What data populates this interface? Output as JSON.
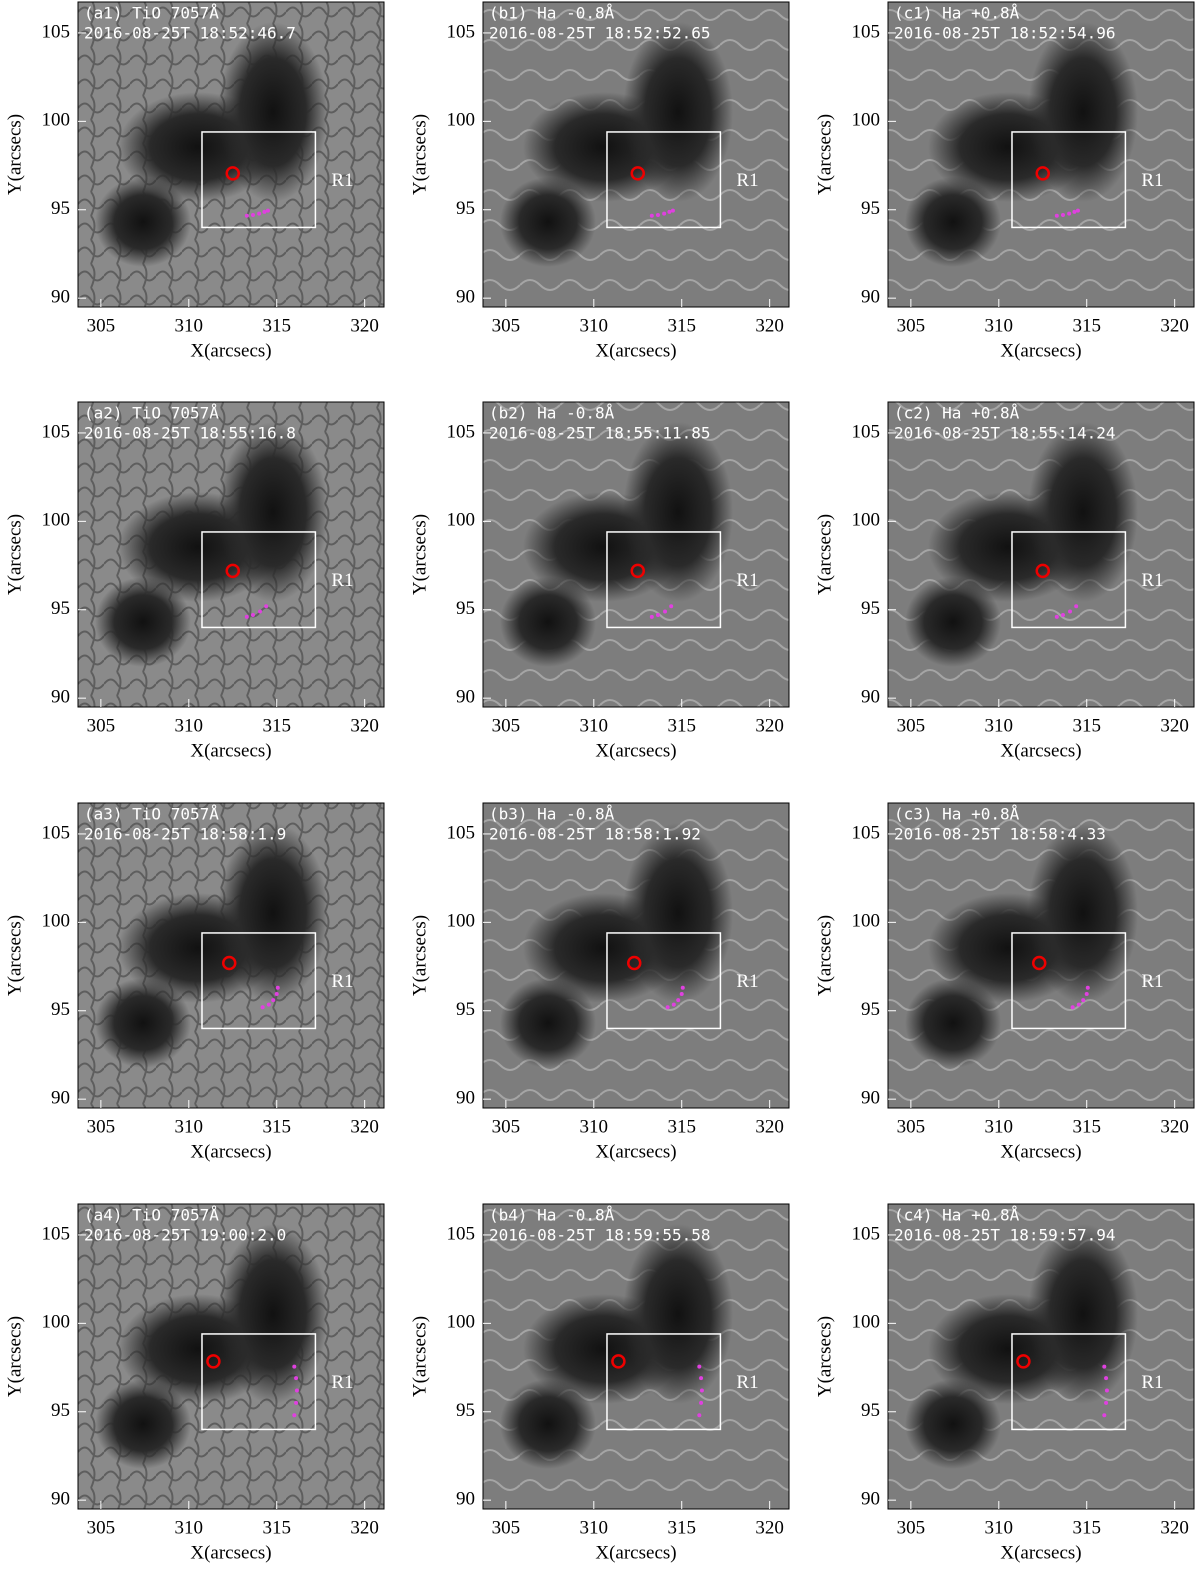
{
  "chart_data": [
    {
      "type": "image",
      "title": "(a1) TiO 7057Å",
      "subtitle": "2016-08-25T 18:52:46.7",
      "xlabel": "X(arcsecs)",
      "ylabel": "Y(arcsecs)",
      "xlim": [
        303.7,
        321.1
      ],
      "ylim": [
        89.5,
        106.75
      ],
      "xticks": [
        305,
        310,
        315,
        320
      ],
      "yticks": [
        90,
        95,
        100,
        105
      ],
      "box": {
        "label": "R1",
        "x": [
          310.75,
          317.2
        ],
        "y": [
          94,
          99.4
        ]
      },
      "circle": [
        312.5,
        97.06
      ],
      "points": {
        "x": [
          313.3,
          313.65,
          314.0,
          314.3,
          314.5
        ],
        "y": [
          94.66,
          94.7,
          94.78,
          94.88,
          94.95
        ]
      }
    },
    {
      "type": "image",
      "title": "(b1) Ha -0.8Å",
      "subtitle": "2016-08-25T 18:52:52.65",
      "xlabel": "X(arcsecs)",
      "ylabel": "Y(arcsecs)",
      "xlim": [
        303.7,
        321.1
      ],
      "ylim": [
        89.5,
        106.75
      ],
      "xticks": [
        305,
        310,
        315,
        320
      ],
      "yticks": [
        90,
        95,
        100,
        105
      ],
      "box": {
        "label": "R1",
        "x": [
          310.75,
          317.2
        ],
        "y": [
          94,
          99.4
        ]
      },
      "circle": [
        312.5,
        97.06
      ],
      "points": {
        "x": [
          313.3,
          313.65,
          314.0,
          314.3,
          314.5
        ],
        "y": [
          94.66,
          94.7,
          94.78,
          94.88,
          94.95
        ]
      }
    },
    {
      "type": "image",
      "title": "(c1) Ha +0.8Å",
      "subtitle": "2016-08-25T 18:52:54.96",
      "xlabel": "X(arcsecs)",
      "ylabel": "Y(arcsecs)",
      "xlim": [
        303.7,
        321.1
      ],
      "ylim": [
        89.5,
        106.75
      ],
      "xticks": [
        305,
        310,
        315,
        320
      ],
      "yticks": [
        90,
        95,
        100,
        105
      ],
      "box": {
        "label": "R1",
        "x": [
          310.75,
          317.2
        ],
        "y": [
          94,
          99.4
        ]
      },
      "circle": [
        312.5,
        97.06
      ],
      "points": {
        "x": [
          313.3,
          313.65,
          314.0,
          314.3,
          314.5
        ],
        "y": [
          94.66,
          94.7,
          94.78,
          94.88,
          94.95
        ]
      }
    },
    {
      "type": "image",
      "title": "(a2) TiO 7057Å",
      "subtitle": "2016-08-25T 18:55:16.8",
      "xlabel": "X(arcsecs)",
      "ylabel": "Y(arcsecs)",
      "xlim": [
        303.7,
        321.1
      ],
      "ylim": [
        89.5,
        106.75
      ],
      "xticks": [
        305,
        310,
        315,
        320
      ],
      "yticks": [
        90,
        95,
        100,
        105
      ],
      "box": {
        "label": "R1",
        "x": [
          310.75,
          317.2
        ],
        "y": [
          94,
          99.4
        ]
      },
      "circle": [
        312.5,
        97.2
      ],
      "points": {
        "x": [
          313.3,
          313.65,
          314.05,
          314.4
        ],
        "y": [
          94.6,
          94.7,
          94.9,
          95.2
        ]
      }
    },
    {
      "type": "image",
      "title": "(b2) Ha -0.8Å",
      "subtitle": "2016-08-25T 18:55:11.85",
      "xlabel": "X(arcsecs)",
      "ylabel": "Y(arcsecs)",
      "xlim": [
        303.7,
        321.1
      ],
      "ylim": [
        89.5,
        106.75
      ],
      "xticks": [
        305,
        310,
        315,
        320
      ],
      "yticks": [
        90,
        95,
        100,
        105
      ],
      "box": {
        "label": "R1",
        "x": [
          310.75,
          317.2
        ],
        "y": [
          94,
          99.4
        ]
      },
      "circle": [
        312.5,
        97.2
      ],
      "points": {
        "x": [
          313.3,
          313.65,
          314.05,
          314.4
        ],
        "y": [
          94.6,
          94.7,
          94.9,
          95.2
        ]
      }
    },
    {
      "type": "image",
      "title": "(c2) Ha +0.8Å",
      "subtitle": "2016-08-25T 18:55:14.24",
      "xlabel": "X(arcsecs)",
      "ylabel": "Y(arcsecs)",
      "xlim": [
        303.7,
        321.1
      ],
      "ylim": [
        89.5,
        106.75
      ],
      "xticks": [
        305,
        310,
        315,
        320
      ],
      "yticks": [
        90,
        95,
        100,
        105
      ],
      "box": {
        "label": "R1",
        "x": [
          310.75,
          317.2
        ],
        "y": [
          94,
          99.4
        ]
      },
      "circle": [
        312.5,
        97.2
      ],
      "points": {
        "x": [
          313.3,
          313.65,
          314.05,
          314.4
        ],
        "y": [
          94.6,
          94.7,
          94.9,
          95.2
        ]
      }
    },
    {
      "type": "image",
      "title": "(a3) TiO 7057Å",
      "subtitle": "2016-08-25T 18:58:1.9",
      "xlabel": "X(arcsecs)",
      "ylabel": "Y(arcsecs)",
      "xlim": [
        303.7,
        321.1
      ],
      "ylim": [
        89.5,
        106.75
      ],
      "xticks": [
        305,
        310,
        315,
        320
      ],
      "yticks": [
        90,
        95,
        100,
        105
      ],
      "box": {
        "label": "R1",
        "x": [
          310.75,
          317.2
        ],
        "y": [
          94,
          99.4
        ]
      },
      "circle": [
        312.3,
        97.7
      ],
      "points": {
        "x": [
          314.2,
          314.55,
          314.8,
          315.0,
          315.06
        ],
        "y": [
          95.2,
          95.35,
          95.6,
          95.95,
          96.3
        ]
      }
    },
    {
      "type": "image",
      "title": "(b3) Ha -0.8Å",
      "subtitle": "2016-08-25T 18:58:1.92",
      "xlabel": "X(arcsecs)",
      "ylabel": "Y(arcsecs)",
      "xlim": [
        303.7,
        321.1
      ],
      "ylim": [
        89.5,
        106.75
      ],
      "xticks": [
        305,
        310,
        315,
        320
      ],
      "yticks": [
        90,
        95,
        100,
        105
      ],
      "box": {
        "label": "R1",
        "x": [
          310.75,
          317.2
        ],
        "y": [
          94,
          99.4
        ]
      },
      "circle": [
        312.3,
        97.7
      ],
      "points": {
        "x": [
          314.2,
          314.55,
          314.8,
          315.0,
          315.06
        ],
        "y": [
          95.2,
          95.35,
          95.6,
          95.95,
          96.3
        ]
      }
    },
    {
      "type": "image",
      "title": "(c3) Ha +0.8Å",
      "subtitle": "2016-08-25T 18:58:4.33",
      "xlabel": "X(arcsecs)",
      "ylabel": "Y(arcsecs)",
      "xlim": [
        303.7,
        321.1
      ],
      "ylim": [
        89.5,
        106.75
      ],
      "xticks": [
        305,
        310,
        315,
        320
      ],
      "yticks": [
        90,
        95,
        100,
        105
      ],
      "box": {
        "label": "R1",
        "x": [
          310.75,
          317.2
        ],
        "y": [
          94,
          99.4
        ]
      },
      "circle": [
        312.3,
        97.7
      ],
      "points": {
        "x": [
          314.2,
          314.55,
          314.8,
          315.0,
          315.06
        ],
        "y": [
          95.2,
          95.35,
          95.6,
          95.95,
          96.3
        ]
      }
    },
    {
      "type": "image",
      "title": "(a4) TiO 7057Å",
      "subtitle": "2016-08-25T 19:00:2.0",
      "xlabel": "X(arcsecs)",
      "ylabel": "Y(arcsecs)",
      "xlim": [
        303.7,
        321.1
      ],
      "ylim": [
        89.5,
        106.75
      ],
      "xticks": [
        305,
        310,
        315,
        320
      ],
      "yticks": [
        90,
        95,
        100,
        105
      ],
      "box": {
        "label": "R1",
        "x": [
          310.75,
          317.2
        ],
        "y": [
          94,
          99.4
        ]
      },
      "circle": [
        311.4,
        97.85
      ],
      "points": {
        "x": [
          316.0,
          316.1,
          316.15,
          316.1,
          316.0
        ],
        "y": [
          97.55,
          96.9,
          96.2,
          95.5,
          94.8
        ]
      }
    },
    {
      "type": "image",
      "title": "(b4) Ha -0.8Å",
      "subtitle": "2016-08-25T 18:59:55.58",
      "xlabel": "X(arcsecs)",
      "ylabel": "Y(arcsecs)",
      "xlim": [
        303.7,
        321.1
      ],
      "ylim": [
        89.5,
        106.75
      ],
      "xticks": [
        305,
        310,
        315,
        320
      ],
      "yticks": [
        90,
        95,
        100,
        105
      ],
      "box": {
        "label": "R1",
        "x": [
          310.75,
          317.2
        ],
        "y": [
          94,
          99.4
        ]
      },
      "circle": [
        311.4,
        97.85
      ],
      "points": {
        "x": [
          316.0,
          316.1,
          316.15,
          316.1,
          316.0
        ],
        "y": [
          97.55,
          96.9,
          96.2,
          95.5,
          94.8
        ]
      }
    },
    {
      "type": "image",
      "title": "(c4) Ha +0.8Å",
      "subtitle": "2016-08-25T 18:59:57.94",
      "xlabel": "X(arcsecs)",
      "ylabel": "Y(arcsecs)",
      "xlim": [
        303.7,
        321.1
      ],
      "ylim": [
        89.5,
        106.75
      ],
      "xticks": [
        305,
        310,
        315,
        320
      ],
      "yticks": [
        90,
        95,
        100,
        105
      ],
      "box": {
        "label": "R1",
        "x": [
          310.75,
          317.2
        ],
        "y": [
          94,
          99.4
        ]
      },
      "circle": [
        311.4,
        97.85
      ],
      "points": {
        "x": [
          316.0,
          316.1,
          316.15,
          316.1,
          316.0
        ],
        "y": [
          97.55,
          96.9,
          96.2,
          95.5,
          94.8
        ]
      }
    }
  ]
}
